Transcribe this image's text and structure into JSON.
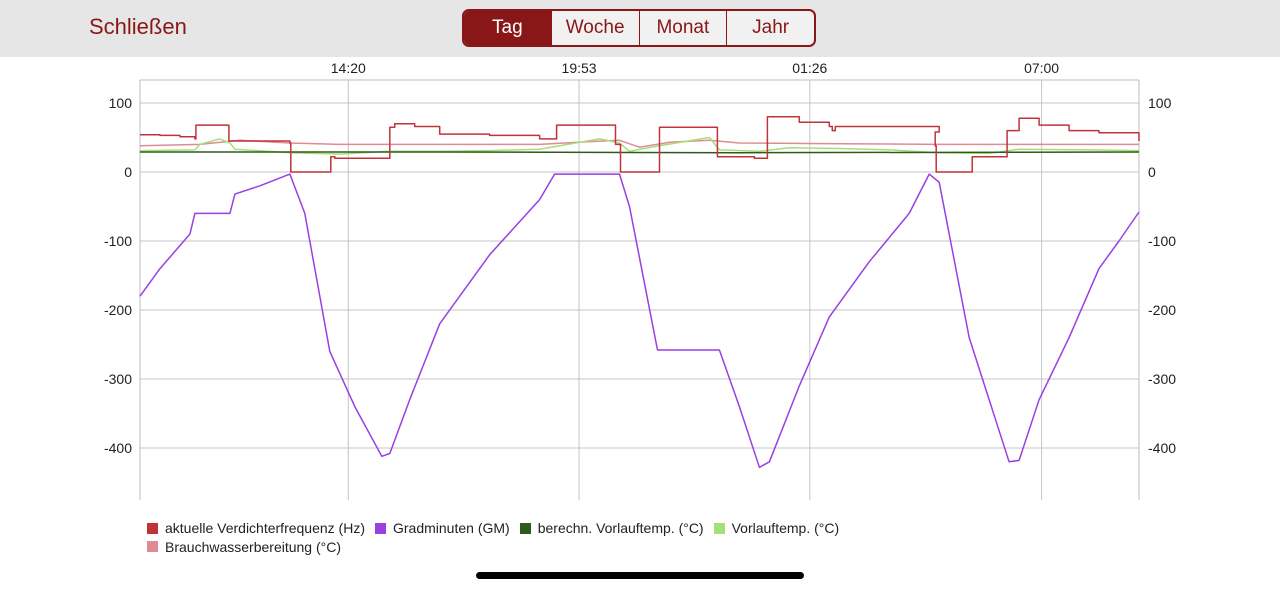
{
  "header": {
    "close_label": "Schließen",
    "tabs": [
      {
        "label": "Tag",
        "active": true
      },
      {
        "label": "Woche",
        "active": false
      },
      {
        "label": "Monat",
        "active": false
      },
      {
        "label": "Jahr",
        "active": false
      }
    ],
    "accent_color": "#8a1717"
  },
  "chart_data": {
    "type": "line",
    "x_ticks": [
      "14:20",
      "19:53",
      "01:26",
      "07:00"
    ],
    "y_ticks": [
      100,
      0,
      -100,
      -200,
      -300,
      -400
    ],
    "ylim": [
      -480,
      115
    ],
    "grid": true,
    "legend_position": "bottom",
    "series": [
      {
        "name": "aktuelle Verdichterfrequenz (Hz)",
        "color": "#c0333b",
        "step": true,
        "points": [
          [
            0,
            54
          ],
          [
            0.02,
            53
          ],
          [
            0.04,
            51
          ],
          [
            0.055,
            48
          ],
          [
            0.056,
            68
          ],
          [
            0.088,
            68
          ],
          [
            0.089,
            45
          ],
          [
            0.15,
            42
          ],
          [
            0.151,
            0
          ],
          [
            0.19,
            0
          ],
          [
            0.191,
            22
          ],
          [
            0.195,
            20
          ],
          [
            0.235,
            20
          ],
          [
            0.25,
            65
          ],
          [
            0.255,
            70
          ],
          [
            0.275,
            66
          ],
          [
            0.3,
            55
          ],
          [
            0.35,
            53
          ],
          [
            0.4,
            48
          ],
          [
            0.416,
            48
          ],
          [
            0.417,
            68
          ],
          [
            0.475,
            68
          ],
          [
            0.476,
            40
          ],
          [
            0.48,
            40
          ],
          [
            0.481,
            0
          ],
          [
            0.519,
            0
          ],
          [
            0.52,
            65
          ],
          [
            0.577,
            65
          ],
          [
            0.578,
            22
          ],
          [
            0.615,
            20
          ],
          [
            0.628,
            80
          ],
          [
            0.66,
            72
          ],
          [
            0.69,
            66
          ],
          [
            0.693,
            60
          ],
          [
            0.696,
            66
          ],
          [
            0.8,
            58
          ],
          [
            0.8,
            58
          ],
          [
            0.796,
            38
          ],
          [
            0.797,
            0
          ],
          [
            0.832,
            0
          ],
          [
            0.833,
            22
          ],
          [
            0.84,
            22
          ],
          [
            0.865,
            22
          ],
          [
            0.868,
            60
          ],
          [
            0.88,
            78
          ],
          [
            0.9,
            68
          ],
          [
            0.93,
            60
          ],
          [
            0.96,
            57
          ],
          [
            1.0,
            45
          ]
        ]
      },
      {
        "name": "Gradminuten (GM)",
        "color": "#9a3fe0",
        "step": false,
        "points": [
          [
            0,
            -180
          ],
          [
            0.02,
            -140
          ],
          [
            0.05,
            -90
          ],
          [
            0.055,
            -60
          ],
          [
            0.09,
            -60
          ],
          [
            0.095,
            -32
          ],
          [
            0.12,
            -20
          ],
          [
            0.15,
            -3
          ],
          [
            0.165,
            -60
          ],
          [
            0.19,
            -260
          ],
          [
            0.215,
            -340
          ],
          [
            0.242,
            -412
          ],
          [
            0.25,
            -408
          ],
          [
            0.27,
            -330
          ],
          [
            0.3,
            -220
          ],
          [
            0.35,
            -120
          ],
          [
            0.4,
            -40
          ],
          [
            0.415,
            -3
          ],
          [
            0.48,
            -3
          ],
          [
            0.49,
            -50
          ],
          [
            0.518,
            -258
          ],
          [
            0.58,
            -258
          ],
          [
            0.6,
            -340
          ],
          [
            0.62,
            -428
          ],
          [
            0.63,
            -420
          ],
          [
            0.66,
            -310
          ],
          [
            0.69,
            -210
          ],
          [
            0.73,
            -130
          ],
          [
            0.77,
            -60
          ],
          [
            0.79,
            -3
          ],
          [
            0.8,
            -15
          ],
          [
            0.83,
            -240
          ],
          [
            0.87,
            -420
          ],
          [
            0.88,
            -418
          ],
          [
            0.9,
            -330
          ],
          [
            0.93,
            -240
          ],
          [
            0.96,
            -140
          ],
          [
            0.98,
            -100
          ],
          [
            1.0,
            -58
          ]
        ]
      },
      {
        "name": "berechn. Vorlauftemp. (°C)",
        "color": "#2e5a1c",
        "step": false,
        "points": [
          [
            0,
            29
          ],
          [
            0.3,
            29
          ],
          [
            0.6,
            28
          ],
          [
            1.0,
            29
          ]
        ]
      },
      {
        "name": "Vorlauftemp. (°C)",
        "color": "#a6df78",
        "step": false,
        "points": [
          [
            0,
            31
          ],
          [
            0.055,
            32
          ],
          [
            0.06,
            40
          ],
          [
            0.08,
            48
          ],
          [
            0.09,
            42
          ],
          [
            0.095,
            33
          ],
          [
            0.15,
            28
          ],
          [
            0.2,
            26
          ],
          [
            0.25,
            30
          ],
          [
            0.3,
            30
          ],
          [
            0.35,
            31
          ],
          [
            0.4,
            33
          ],
          [
            0.42,
            38
          ],
          [
            0.46,
            48
          ],
          [
            0.48,
            42
          ],
          [
            0.49,
            30
          ],
          [
            0.52,
            38
          ],
          [
            0.57,
            50
          ],
          [
            0.58,
            32
          ],
          [
            0.62,
            30
          ],
          [
            0.65,
            35
          ],
          [
            0.7,
            34
          ],
          [
            0.75,
            32
          ],
          [
            0.8,
            28
          ],
          [
            0.85,
            27
          ],
          [
            0.88,
            33
          ],
          [
            0.95,
            32
          ],
          [
            1.0,
            31
          ]
        ]
      },
      {
        "name": "Brauchwasserbereitung (°C)",
        "color": "#e08a93",
        "step": false,
        "points": [
          [
            0,
            38
          ],
          [
            0.06,
            40
          ],
          [
            0.1,
            46
          ],
          [
            0.15,
            42
          ],
          [
            0.2,
            40
          ],
          [
            0.3,
            40
          ],
          [
            0.4,
            40
          ],
          [
            0.45,
            44
          ],
          [
            0.48,
            46
          ],
          [
            0.5,
            36
          ],
          [
            0.53,
            43
          ],
          [
            0.57,
            46
          ],
          [
            0.6,
            42
          ],
          [
            0.7,
            41
          ],
          [
            0.8,
            40
          ],
          [
            0.9,
            40
          ],
          [
            1.0,
            40
          ]
        ]
      }
    ]
  }
}
